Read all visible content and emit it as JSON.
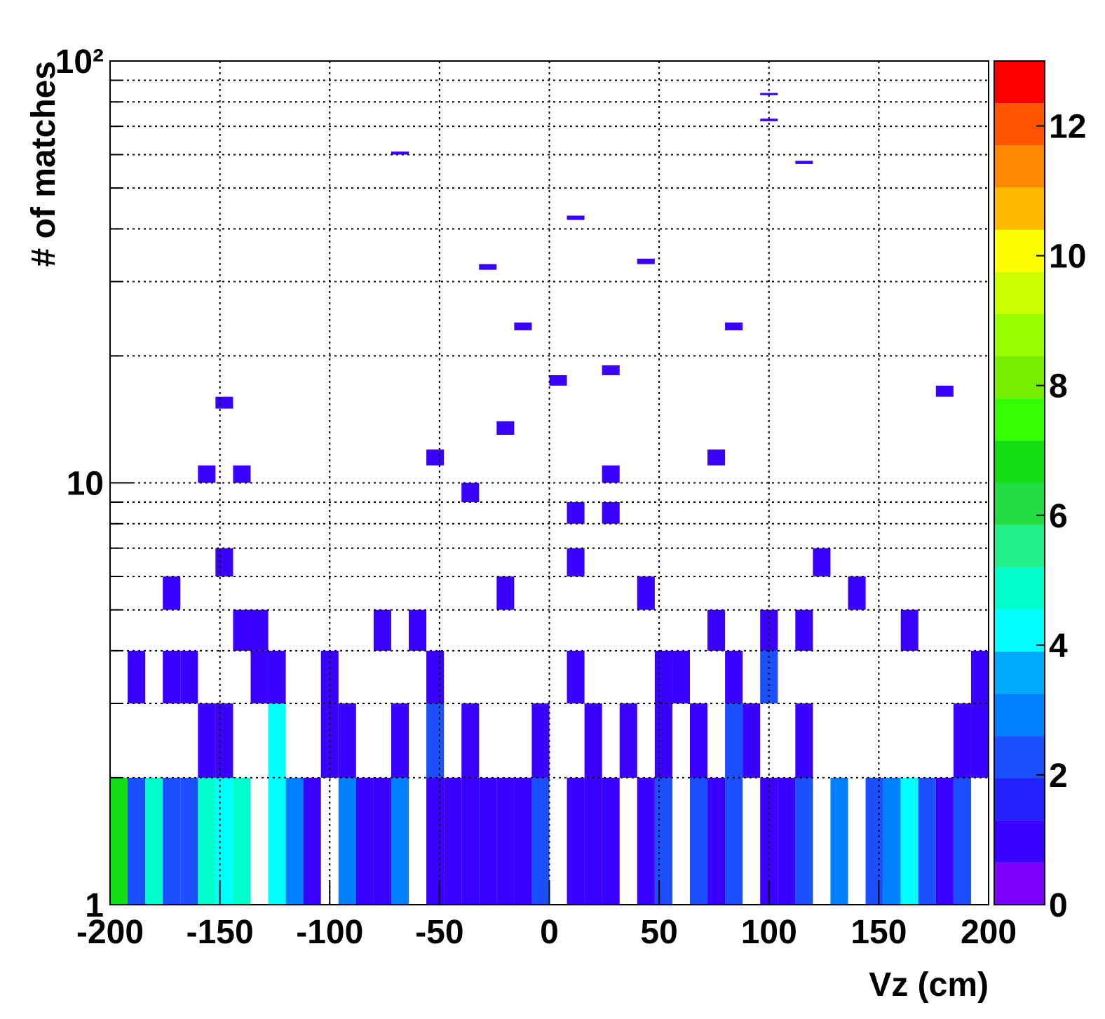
{
  "chart_data": {
    "type": "heatmap",
    "xlabel": "Vz (cm)",
    "ylabel": "# of matches",
    "xlim": [
      -200,
      200
    ],
    "xticks": [
      -200,
      -150,
      -100,
      -50,
      0,
      50,
      100,
      150,
      200
    ],
    "ylim": [
      1,
      100
    ],
    "yticks": [
      1,
      10,
      {
        "value": 100,
        "label": "10²"
      }
    ],
    "yminorticks": [
      2,
      3,
      4,
      5,
      6,
      7,
      8,
      9,
      20,
      30,
      40,
      50,
      60,
      70,
      80,
      90
    ],
    "log_y": true,
    "grid": true,
    "bin_width": [
      8,
      1
    ],
    "zlim": [
      0,
      13
    ],
    "zticks": [
      0,
      2,
      4,
      6,
      8,
      10,
      12
    ],
    "palette": [
      "#7f00ff",
      "#3a00ff",
      "#2222ff",
      "#1a50ff",
      "#0080ff",
      "#00aaff",
      "#00ffff",
      "#00ffcc",
      "#22ee88",
      "#22dd44",
      "#11dd11",
      "#33ff00",
      "#77ee00",
      "#99ff00",
      "#ccff00",
      "#ffff00",
      "#ffbb00",
      "#ff8800",
      "#ff5500",
      "#ff0000"
    ],
    "x": [
      -200,
      -192,
      -184,
      -176,
      -168,
      -160,
      -152,
      -144,
      -128,
      -120,
      -112,
      -96,
      -88,
      -80,
      -72,
      -56,
      -48,
      -40,
      -32,
      -24,
      -16,
      -8,
      8,
      16,
      24,
      40,
      48,
      64,
      72,
      80,
      96,
      104,
      112,
      128,
      144,
      152,
      160,
      168,
      176,
      184,
      -160,
      -152,
      -128,
      -104,
      -96,
      -72,
      -56,
      -40,
      -8,
      16,
      32,
      48,
      64,
      80,
      88,
      112,
      184,
      192,
      -192,
      -176,
      -168,
      -136,
      -128,
      -104,
      -56,
      8,
      48,
      56,
      80,
      96,
      192,
      -144,
      -136,
      -80,
      -64,
      72,
      96,
      112,
      160,
      -176,
      -24,
      40,
      136,
      -152,
      8,
      120,
      8,
      24,
      -40,
      -160,
      -144,
      24,
      -56,
      72,
      -24,
      -152,
      176,
      0,
      24,
      -16,
      80,
      -32,
      40,
      8,
      112,
      -72,
      96,
      96
    ],
    "y": [
      1,
      1,
      1,
      1,
      1,
      1,
      1,
      1,
      1,
      1,
      1,
      1,
      1,
      1,
      1,
      1,
      1,
      1,
      1,
      1,
      1,
      1,
      1,
      1,
      1,
      1,
      1,
      1,
      1,
      1,
      1,
      1,
      1,
      1,
      1,
      1,
      1,
      1,
      1,
      1,
      2,
      2,
      2,
      2,
      2,
      2,
      2,
      2,
      2,
      2,
      2,
      2,
      2,
      2,
      2,
      2,
      2,
      2,
      3,
      3,
      3,
      3,
      3,
      3,
      3,
      3,
      3,
      3,
      3,
      3,
      3,
      4,
      4,
      4,
      4,
      4,
      4,
      4,
      4,
      5,
      5,
      5,
      5,
      6,
      6,
      6,
      8,
      8,
      9,
      10,
      10,
      10,
      11,
      11,
      13,
      15,
      16,
      17,
      18,
      23,
      23,
      32,
      33,
      42,
      57,
      60,
      72,
      83
    ],
    "z": [
      7,
      2,
      5,
      2,
      2,
      5,
      4,
      5,
      4,
      3,
      1,
      3,
      1,
      1,
      3,
      1,
      1,
      1,
      1,
      1,
      1,
      2,
      1,
      1,
      1,
      1,
      2,
      2,
      1,
      2,
      1,
      1,
      2,
      3,
      2,
      3,
      4,
      2,
      1,
      2,
      1,
      1,
      4,
      1,
      1,
      1,
      2,
      1,
      1,
      1,
      1,
      1,
      1,
      2,
      1,
      1,
      1,
      1,
      1,
      1,
      1,
      1,
      1,
      1,
      1,
      1,
      1,
      1,
      1,
      2,
      1,
      1,
      1,
      1,
      1,
      1,
      1,
      1,
      1,
      1,
      1,
      1,
      1,
      1,
      1,
      1,
      1,
      1,
      1,
      1,
      1,
      1,
      1,
      1,
      1,
      1,
      1,
      1,
      1,
      1,
      1,
      1,
      1,
      1,
      1,
      1,
      1,
      1
    ]
  }
}
